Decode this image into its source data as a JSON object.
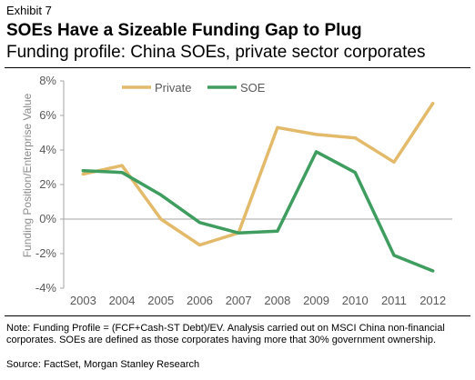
{
  "header": {
    "exhibit": "Exhibit 7",
    "title": "SOEs Have a Sizeable Funding Gap to Plug",
    "subtitle": "Funding profile: China SOEs, private sector corporates"
  },
  "chart_data": {
    "type": "line",
    "title": "",
    "xlabel": "",
    "ylabel": "Funding Position/Enterprise Value",
    "categories": [
      "2003",
      "2004",
      "2005",
      "2006",
      "2007",
      "2008",
      "2009",
      "2010",
      "2011",
      "2012"
    ],
    "y_ticks": [
      "-4%",
      "-2%",
      "0%",
      "2%",
      "4%",
      "6%",
      "8%"
    ],
    "ylim": [
      -4,
      8
    ],
    "grid": false,
    "legend_position": "top",
    "series": [
      {
        "name": "Private",
        "color": "#e3b96a",
        "values": [
          2.6,
          3.1,
          0.0,
          -1.5,
          -0.8,
          5.3,
          4.9,
          4.7,
          3.3,
          6.7
        ]
      },
      {
        "name": "SOE",
        "color": "#3e9d5f",
        "values": [
          2.8,
          2.7,
          1.4,
          -0.2,
          -0.8,
          -0.7,
          3.9,
          2.7,
          -2.1,
          -3.0
        ]
      }
    ]
  },
  "footer": {
    "note": "Note: Funding Profile = (FCF+Cash-ST Debt)/EV. Analysis carried out on MSCI China non-financial corporates. SOEs are defined as those corporates having more that 30% government ownership.",
    "source": "Source: FactSet, Morgan Stanley Research"
  }
}
